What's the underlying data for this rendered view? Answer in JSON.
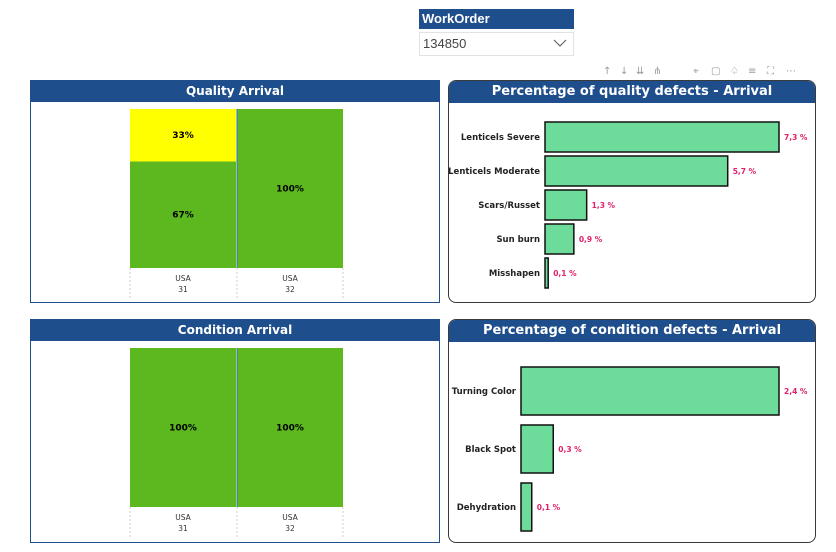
{
  "slicer": {
    "title": "WorkOrder",
    "value": "134850"
  },
  "toolbar": {
    "icons": [
      "arrow-up-icon",
      "arrow-down-icon",
      "double-arrow-down-icon",
      "fork-icon",
      "pin-icon",
      "copy-icon",
      "bell-icon",
      "filter-icon",
      "focus-mode-icon",
      "more-options-icon"
    ],
    "glyphs": [
      "↑",
      "↓",
      "⇊",
      "⋔",
      "⌖",
      "▢",
      "♤",
      "≡",
      "⛶",
      "⋯"
    ]
  },
  "colors": {
    "header": "#1f4e8c",
    "green": "#5cb81e",
    "yellow": "#ffff00",
    "bar_green": "#6ddc9a",
    "label_pink": "#e0206a"
  },
  "quality_panel": {
    "title": "Quality Arrival"
  },
  "condition_panel": {
    "title": "Condition Arrival"
  },
  "quality_defects_panel": {
    "title": "Percentage of quality defects - Arrival"
  },
  "condition_defects_panel": {
    "title": "Percentage of condition defects - Arrival"
  },
  "chart_data": [
    {
      "type": "bar",
      "title": "Quality Arrival",
      "stacked": "100%",
      "categories": [
        [
          "USA",
          "31"
        ],
        [
          "USA",
          "32"
        ]
      ],
      "series": [
        {
          "color": "#5cb81e",
          "values": [
            67,
            100
          ],
          "labels": [
            "67%",
            "100%"
          ]
        },
        {
          "color": "#ffff00",
          "values": [
            33,
            0
          ],
          "labels": [
            "33%",
            ""
          ]
        }
      ]
    },
    {
      "type": "bar",
      "orientation": "horizontal",
      "title": "Percentage of quality defects - Arrival",
      "categories": [
        "Lenticels Severe",
        "Lenticels Moderate",
        "Scars/Russet",
        "Sun burn",
        "Misshapen"
      ],
      "values": [
        7.3,
        5.7,
        1.3,
        0.9,
        0.1
      ],
      "labels": [
        "7,3 %",
        "5,7 %",
        "1,3 %",
        "0,9 %",
        "0,1 %"
      ]
    },
    {
      "type": "bar",
      "title": "Condition Arrival",
      "stacked": "100%",
      "categories": [
        [
          "USA",
          "31"
        ],
        [
          "USA",
          "32"
        ]
      ],
      "series": [
        {
          "color": "#5cb81e",
          "values": [
            100,
            100
          ],
          "labels": [
            "100%",
            "100%"
          ]
        }
      ]
    },
    {
      "type": "bar",
      "orientation": "horizontal",
      "title": "Percentage of condition defects - Arrival",
      "categories": [
        "Turning Color",
        "Black Spot",
        "Dehydration"
      ],
      "values": [
        2.4,
        0.3,
        0.1
      ],
      "labels": [
        "2,4 %",
        "0,3 %",
        "0,1 %"
      ]
    }
  ]
}
